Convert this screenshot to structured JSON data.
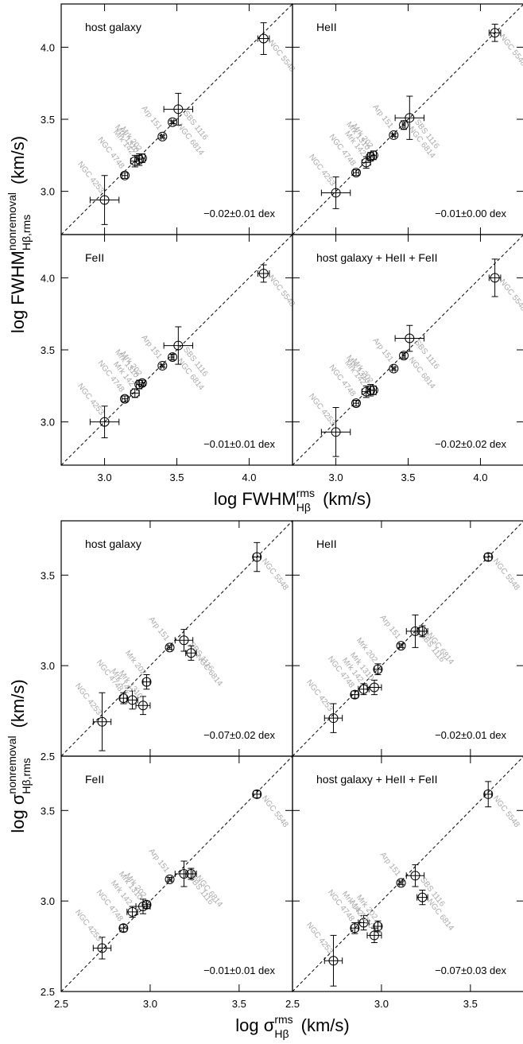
{
  "figures": [
    {
      "xlabel": {
        "text": "log FWHM",
        "sup": "rms",
        "sub": "Hβ",
        "unit": "(km/s)"
      },
      "ylabel": {
        "text": "log FWHM",
        "sup": "nonremoval",
        "sub": "Hβ,rms",
        "unit": "(km/s)"
      }
    },
    {
      "xlabel": {
        "text": "log σ",
        "sup": "rms",
        "sub": "Hβ",
        "unit": "(km/s)"
      },
      "ylabel": {
        "text": "log σ",
        "sup": "nonremoval",
        "sub": "Hβ,rms",
        "unit": "(km/s)"
      }
    }
  ],
  "chart_data": [
    {
      "type": "scatter",
      "label": "host galaxy",
      "annotation": "−0.02±0.01 dex",
      "categories": [
        "NGC 4253",
        "NGC 4748",
        "Mrk 142",
        "Mrk 1310",
        "Mrk 202",
        "Arp 151",
        "NGC 6814",
        "SBS 1116",
        "NGC 5548"
      ],
      "x": [
        3.0,
        3.14,
        3.21,
        3.24,
        3.26,
        3.4,
        3.47,
        3.51,
        4.1
      ],
      "xerr": [
        0.1,
        0.02,
        0.03,
        0.02,
        0.02,
        0.01,
        0.01,
        0.1,
        0.04
      ],
      "y": [
        2.94,
        3.11,
        3.21,
        3.22,
        3.23,
        3.38,
        3.48,
        3.57,
        4.06
      ],
      "yerr": [
        0.17,
        0.02,
        0.04,
        0.04,
        0.03,
        0.01,
        0.01,
        0.11,
        0.11
      ],
      "xlim": [
        2.7,
        4.3
      ],
      "ylim": [
        2.7,
        4.3
      ],
      "xticks": [
        {
          "value": 3,
          "label": "3.0"
        },
        3.5,
        {
          "value": 4,
          "label": "4.0"
        }
      ],
      "yticks": [
        {
          "value": 3,
          "label": "3.0"
        },
        3.5,
        {
          "value": 4,
          "label": "4.0"
        }
      ],
      "identity_line": true
    },
    {
      "type": "scatter",
      "label": "HeII",
      "annotation": "−0.01±0.00 dex",
      "categories": [
        "NGC 4253",
        "NGC 4748",
        "Mrk 142",
        "Mrk 1310",
        "Mrk 202",
        "Arp 151",
        "NGC 6814",
        "SBS 1116",
        "NGC 5548"
      ],
      "x": [
        3.0,
        3.14,
        3.21,
        3.24,
        3.26,
        3.4,
        3.47,
        3.51,
        4.1
      ],
      "xerr": [
        0.1,
        0.02,
        0.03,
        0.02,
        0.02,
        0.01,
        0.01,
        0.1,
        0.04
      ],
      "y": [
        2.99,
        3.13,
        3.2,
        3.24,
        3.25,
        3.39,
        3.46,
        3.51,
        4.1
      ],
      "yerr": [
        0.11,
        0.02,
        0.04,
        0.03,
        0.03,
        0.01,
        0.03,
        0.15,
        0.06
      ],
      "xlim": [
        2.7,
        4.3
      ],
      "ylim": [
        2.7,
        4.3
      ],
      "xticks": [
        {
          "value": 3,
          "label": "3.0"
        },
        3.5,
        {
          "value": 4,
          "label": "4.0"
        }
      ],
      "yticks": [
        {
          "value": 3,
          "label": "3.0"
        },
        3.5,
        {
          "value": 4,
          "label": "4.0"
        }
      ],
      "identity_line": true
    },
    {
      "type": "scatter",
      "label": "FeII",
      "annotation": "−0.01±0.01 dex",
      "categories": [
        "NGC 4253",
        "NGC 4748",
        "Mrk 142",
        "Mrk 1310",
        "Mrk 202",
        "Arp 151",
        "NGC 6814",
        "SBS 1116",
        "NGC 5548"
      ],
      "x": [
        3.0,
        3.14,
        3.21,
        3.24,
        3.26,
        3.4,
        3.47,
        3.51,
        4.1
      ],
      "xerr": [
        0.1,
        0.02,
        0.03,
        0.02,
        0.02,
        0.01,
        0.01,
        0.1,
        0.04
      ],
      "y": [
        3.0,
        3.16,
        3.2,
        3.26,
        3.27,
        3.39,
        3.45,
        3.53,
        4.03
      ],
      "yerr": [
        0.11,
        0.02,
        0.03,
        0.03,
        0.02,
        0.01,
        0.02,
        0.13,
        0.06
      ],
      "xlim": [
        2.7,
        4.3
      ],
      "ylim": [
        2.7,
        4.3
      ],
      "xticks": [
        {
          "value": 3,
          "label": "3.0"
        },
        3.5,
        {
          "value": 4,
          "label": "4.0"
        }
      ],
      "yticks": [
        {
          "value": 3,
          "label": "3.0"
        },
        3.5,
        {
          "value": 4,
          "label": "4.0"
        }
      ],
      "identity_line": true
    },
    {
      "type": "scatter",
      "label": "host galaxy + HeII + FeII",
      "annotation": "−0.02±0.02 dex",
      "categories": [
        "NGC 4253",
        "NGC 4748",
        "Mrk 142",
        "Mrk 1310",
        "Mrk 202",
        "Arp 151",
        "NGC 6814",
        "SBS 1116",
        "NGC 5548"
      ],
      "x": [
        3.0,
        3.14,
        3.21,
        3.24,
        3.26,
        3.4,
        3.47,
        3.51,
        4.1
      ],
      "xerr": [
        0.1,
        0.02,
        0.03,
        0.02,
        0.02,
        0.01,
        0.01,
        0.1,
        0.04
      ],
      "y": [
        2.93,
        3.13,
        3.21,
        3.22,
        3.22,
        3.37,
        3.46,
        3.58,
        4.0
      ],
      "yerr": [
        0.17,
        0.02,
        0.04,
        0.04,
        0.03,
        0.01,
        0.02,
        0.09,
        0.13
      ],
      "xlim": [
        2.7,
        4.3
      ],
      "ylim": [
        2.7,
        4.3
      ],
      "xticks": [
        {
          "value": 3,
          "label": "3.0"
        },
        3.5,
        {
          "value": 4,
          "label": "4.0"
        }
      ],
      "yticks": [
        {
          "value": 3,
          "label": "3.0"
        },
        3.5,
        {
          "value": 4,
          "label": "4.0"
        }
      ],
      "identity_line": true
    },
    {
      "type": "scatter",
      "label": "host galaxy",
      "annotation": "−0.07±0.02 dex",
      "categories": [
        "NGC 4253",
        "NGC 4748",
        "Mrk 142",
        "Mrk 1310",
        "Mrk 202",
        "Arp 151",
        "SBS 1116",
        "NGC 6814",
        "NGC 5548"
      ],
      "x": [
        2.73,
        2.85,
        2.9,
        2.96,
        2.98,
        3.11,
        3.19,
        3.23,
        3.6
      ],
      "xerr": [
        0.05,
        0.02,
        0.03,
        0.04,
        0.02,
        0.01,
        0.05,
        0.03,
        0.02
      ],
      "y": [
        2.69,
        2.82,
        2.81,
        2.78,
        2.91,
        3.1,
        3.14,
        3.07,
        3.6
      ],
      "yerr": [
        0.16,
        0.03,
        0.05,
        0.05,
        0.04,
        0.01,
        0.06,
        0.04,
        0.08
      ],
      "xlim": [
        2.5,
        3.8
      ],
      "ylim": [
        2.5,
        3.8
      ],
      "xticks": [
        2.5,
        {
          "value": 3,
          "label": "3.0"
        },
        3.5
      ],
      "yticks": [
        2.5,
        {
          "value": 3,
          "label": "3.0"
        },
        3.5
      ],
      "identity_line": true
    },
    {
      "type": "scatter",
      "label": "HeII",
      "annotation": "−0.02±0.01 dex",
      "categories": [
        "NGC 4253",
        "NGC 4748",
        "Mrk 142",
        "Mrk 1310",
        "Mrk 202",
        "Arp 151",
        "SBS 1116",
        "NGC 6814",
        "NGC 5548"
      ],
      "x": [
        2.73,
        2.85,
        2.9,
        2.96,
        2.98,
        3.11,
        3.19,
        3.23,
        3.6
      ],
      "xerr": [
        0.05,
        0.02,
        0.03,
        0.04,
        0.02,
        0.01,
        0.05,
        0.03,
        0.02
      ],
      "y": [
        2.71,
        2.84,
        2.87,
        2.88,
        2.98,
        3.11,
        3.19,
        3.19,
        3.6
      ],
      "yerr": [
        0.08,
        0.02,
        0.03,
        0.04,
        0.03,
        0.01,
        0.09,
        0.03,
        0.02
      ],
      "xlim": [
        2.5,
        3.8
      ],
      "ylim": [
        2.5,
        3.8
      ],
      "xticks": [
        2.5,
        {
          "value": 3,
          "label": "3.0"
        },
        3.5
      ],
      "yticks": [
        2.5,
        {
          "value": 3,
          "label": "3.0"
        },
        3.5
      ],
      "identity_line": true
    },
    {
      "type": "scatter",
      "label": "FeII",
      "annotation": "−0.01±0.01 dex",
      "categories": [
        "NGC 4253",
        "NGC 4748",
        "Mrk 142",
        "Mrk 1310",
        "Mrk 202",
        "Arp 151",
        "SBS 1116",
        "NGC 6814",
        "NGC 5548"
      ],
      "x": [
        2.73,
        2.85,
        2.9,
        2.96,
        2.98,
        3.11,
        3.19,
        3.23,
        3.6
      ],
      "xerr": [
        0.05,
        0.02,
        0.03,
        0.04,
        0.02,
        0.01,
        0.05,
        0.03,
        0.02
      ],
      "y": [
        2.74,
        2.85,
        2.94,
        2.97,
        2.98,
        3.12,
        3.15,
        3.15,
        3.59
      ],
      "yerr": [
        0.06,
        0.02,
        0.03,
        0.04,
        0.02,
        0.01,
        0.07,
        0.03,
        0.02
      ],
      "xlim": [
        2.5,
        3.8
      ],
      "ylim": [
        2.5,
        3.8
      ],
      "xticks": [
        2.5,
        {
          "value": 3,
          "label": "3.0"
        },
        3.5
      ],
      "yticks": [
        2.5,
        {
          "value": 3,
          "label": "3.0"
        },
        3.5
      ],
      "identity_line": true
    },
    {
      "type": "scatter",
      "label": "host galaxy + HeII + FeII",
      "annotation": "−0.07±0.03 dex",
      "categories": [
        "NGC 4253",
        "NGC 4748",
        "Mrk 142",
        "Mrk 1310",
        "Mrk 202",
        "Arp 151",
        "SBS 1116",
        "NGC 6814",
        "NGC 5548"
      ],
      "x": [
        2.73,
        2.85,
        2.9,
        2.96,
        2.98,
        3.11,
        3.19,
        3.23,
        3.6
      ],
      "xerr": [
        0.05,
        0.02,
        0.03,
        0.04,
        0.02,
        0.01,
        0.05,
        0.03,
        0.02
      ],
      "y": [
        2.67,
        2.85,
        2.88,
        2.81,
        2.86,
        3.1,
        3.14,
        3.02,
        3.59
      ],
      "yerr": [
        0.14,
        0.03,
        0.04,
        0.04,
        0.03,
        0.01,
        0.06,
        0.04,
        0.07
      ],
      "xlim": [
        2.5,
        3.8
      ],
      "ylim": [
        2.5,
        3.8
      ],
      "xticks": [
        2.5,
        {
          "value": 3,
          "label": "3.0"
        },
        3.5
      ],
      "yticks": [
        2.5,
        {
          "value": 3,
          "label": "3.0"
        },
        3.5
      ],
      "identity_line": true
    }
  ]
}
